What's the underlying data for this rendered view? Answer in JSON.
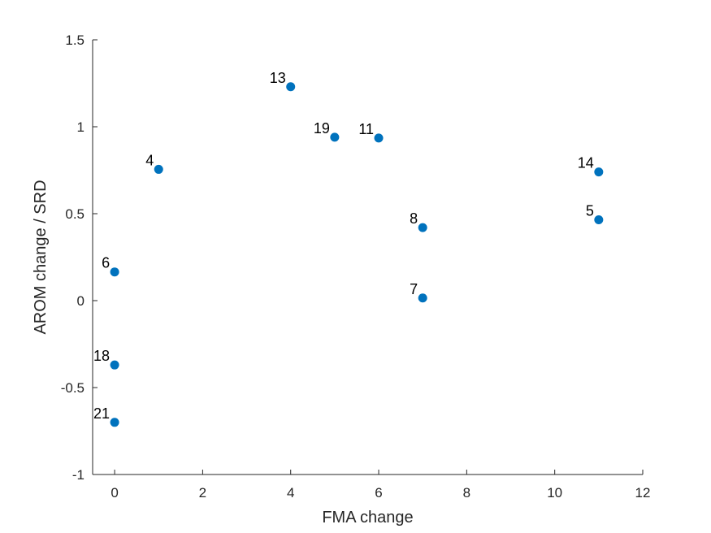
{
  "chart_data": {
    "type": "scatter",
    "title": "",
    "xlabel": "FMA change",
    "ylabel": "AROM change / SRD",
    "xlim": [
      -0.5,
      12
    ],
    "ylim": [
      -1,
      1.5
    ],
    "xticks": [
      0,
      2,
      4,
      6,
      8,
      10,
      12
    ],
    "yticks": [
      -1,
      -0.5,
      0,
      0.5,
      1,
      1.5
    ],
    "xtick_labels": [
      "0",
      "2",
      "4",
      "6",
      "8",
      "10",
      "12"
    ],
    "ytick_labels": [
      "-1",
      "-0.5",
      "0",
      "0.5",
      "1",
      "1.5"
    ],
    "grid": false,
    "marker_color": "#0072BD",
    "points": [
      {
        "label": "13",
        "x": 4,
        "y": 1.23
      },
      {
        "label": "19",
        "x": 5,
        "y": 0.94
      },
      {
        "label": "11",
        "x": 6,
        "y": 0.935
      },
      {
        "label": "4",
        "x": 1,
        "y": 0.755
      },
      {
        "label": "14",
        "x": 11,
        "y": 0.74
      },
      {
        "label": "5",
        "x": 11,
        "y": 0.465
      },
      {
        "label": "8",
        "x": 7,
        "y": 0.42
      },
      {
        "label": "6",
        "x": 0,
        "y": 0.165
      },
      {
        "label": "7",
        "x": 7,
        "y": 0.015
      },
      {
        "label": "18",
        "x": 0,
        "y": -0.37
      },
      {
        "label": "21",
        "x": 0,
        "y": -0.7
      }
    ]
  }
}
